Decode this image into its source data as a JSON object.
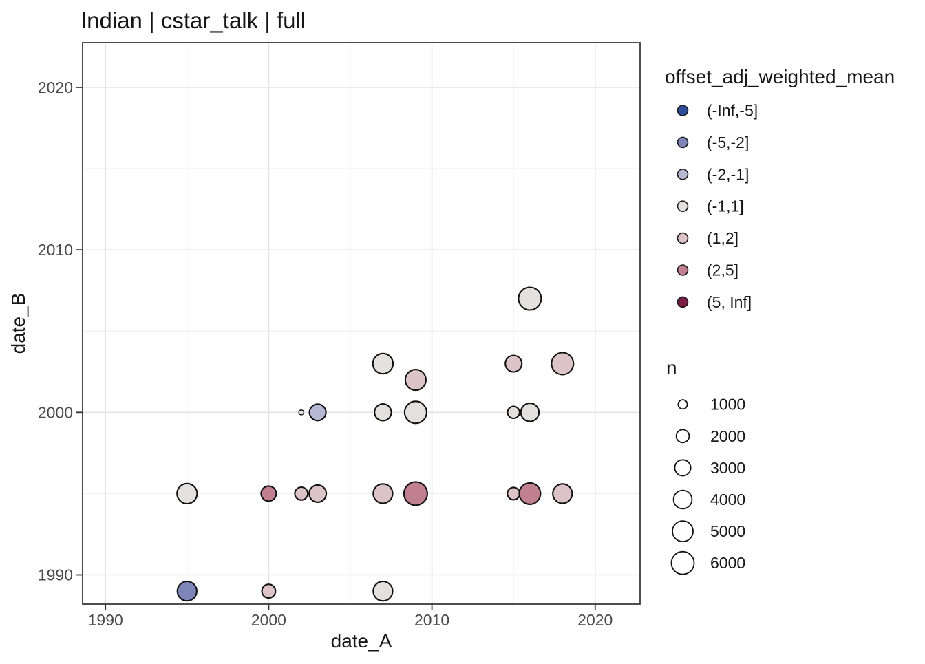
{
  "title": "Indian | cstar_talk | full",
  "chart_data": {
    "type": "scatter",
    "title": "Indian | cstar_talk | full",
    "xlabel": "date_A",
    "ylabel": "date_B",
    "xlim": [
      1988.6,
      2022.75
    ],
    "ylim": [
      1988.2,
      2022.75
    ],
    "x_ticks": [
      1990,
      2000,
      2010,
      2020
    ],
    "x_minor_ticks": [
      1995,
      2005,
      2015
    ],
    "y_ticks": [
      1990,
      2000,
      2010,
      2020
    ],
    "y_minor_ticks": [
      1995,
      2005,
      2015
    ],
    "grid": "on",
    "legend_position": "right",
    "color_legend": {
      "title": "offset_adj_weighted_mean",
      "bins": [
        {
          "label": "(-Inf,-5]",
          "color": "#2b4d9b"
        },
        {
          "label": "(-5,-2]",
          "color": "#7e86b9"
        },
        {
          "label": "(-2,-1]",
          "color": "#b6b9d3"
        },
        {
          "label": "(-1,1]",
          "color": "#e2e1df"
        },
        {
          "label": "(1,2]",
          "color": "#dcc2c9"
        },
        {
          "label": "(2,5]",
          "color": "#c0808f"
        },
        {
          "label": "(5, Inf]",
          "color": "#7b1c45"
        }
      ]
    },
    "size_legend": {
      "title": "n",
      "values": [
        1000,
        2000,
        3000,
        4000,
        5000,
        6000
      ]
    },
    "size_scale": {
      "n_min": 150,
      "n_max": 6400,
      "r_min": 2.5,
      "r_max": 17
    },
    "points": [
      {
        "x": 1995,
        "y": 1989,
        "bin": "(-5,-2]",
        "n": 4400
      },
      {
        "x": 2000,
        "y": 1989,
        "bin": "(1,2]",
        "n": 2200
      },
      {
        "x": 2007,
        "y": 1989,
        "bin": "(-1,1]",
        "n": 4400
      },
      {
        "x": 1995,
        "y": 1995,
        "bin": "(-1,1]",
        "n": 4700
      },
      {
        "x": 2000,
        "y": 1995,
        "bin": "(2,5]",
        "n": 2700
      },
      {
        "x": 2002,
        "y": 1995,
        "bin": "(1,2]",
        "n": 2000
      },
      {
        "x": 2003,
        "y": 1995,
        "bin": "(1,2]",
        "n": 3500
      },
      {
        "x": 2007,
        "y": 1995,
        "bin": "(1,2]",
        "n": 4400
      },
      {
        "x": 2009,
        "y": 1995,
        "bin": "(2,5]",
        "n": 6400
      },
      {
        "x": 2015,
        "y": 1995,
        "bin": "(1,2]",
        "n": 1800
      },
      {
        "x": 2016,
        "y": 1995,
        "bin": "(2,5]",
        "n": 5300
      },
      {
        "x": 2018,
        "y": 1995,
        "bin": "(1,2]",
        "n": 4400
      },
      {
        "x": 2002,
        "y": 2000,
        "bin": "(-1,1]",
        "n": 300
      },
      {
        "x": 2003,
        "y": 2000,
        "bin": "(-2,-1]",
        "n": 3200
      },
      {
        "x": 2007,
        "y": 2000,
        "bin": "(-1,1]",
        "n": 3300
      },
      {
        "x": 2009,
        "y": 2000,
        "bin": "(-1,1]",
        "n": 5700
      },
      {
        "x": 2015,
        "y": 2000,
        "bin": "(-1,1]",
        "n": 1700
      },
      {
        "x": 2016,
        "y": 2000,
        "bin": "(-1,1]",
        "n": 3900
      },
      {
        "x": 2009,
        "y": 2002,
        "bin": "(1,2]",
        "n": 5000
      },
      {
        "x": 2007,
        "y": 2003,
        "bin": "(-1,1]",
        "n": 4800
      },
      {
        "x": 2015,
        "y": 2003,
        "bin": "(1,2]",
        "n": 3200
      },
      {
        "x": 2018,
        "y": 2003,
        "bin": "(1,2]",
        "n": 5700
      },
      {
        "x": 2016,
        "y": 2007,
        "bin": "(-1,1]",
        "n": 6000
      }
    ]
  }
}
